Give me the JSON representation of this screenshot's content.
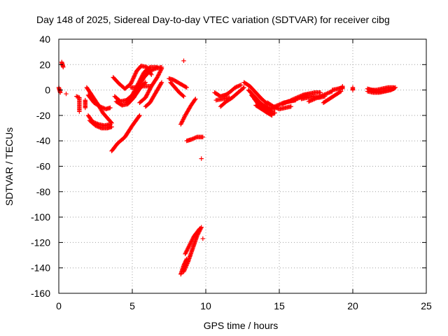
{
  "chart_data": {
    "type": "scatter",
    "title": "Day 148 of 2025, Sidereal Day-to-day VTEC variation (SDTVAR) for receiver cibg",
    "xlabel": "GPS time / hours",
    "ylabel": "SDTVAR / TECUs",
    "xlim": [
      0,
      25
    ],
    "ylim": [
      -160,
      40
    ],
    "xticks": [
      0,
      5,
      10,
      15,
      20,
      25
    ],
    "yticks": [
      40,
      20,
      0,
      -20,
      -40,
      -60,
      -80,
      -100,
      -120,
      -140,
      -160
    ],
    "grid": true,
    "marker": "+",
    "color": "#ff0000",
    "segments": [
      [
        [
          0.0,
          2
        ],
        [
          0.05,
          0
        ],
        [
          0.1,
          -2
        ]
      ],
      [
        [
          0.2,
          22
        ],
        [
          0.25,
          20
        ],
        [
          0.3,
          18
        ]
      ],
      [
        [
          0.5,
          -3
        ]
      ],
      [
        [
          1.2,
          -5
        ],
        [
          1.4,
          -6
        ],
        [
          1.4,
          -17
        ]
      ],
      [
        [
          1.8,
          -8
        ],
        [
          1.8,
          -11
        ],
        [
          1.8,
          -14
        ]
      ],
      [
        [
          1.9,
          2
        ],
        [
          2.3,
          -5
        ],
        [
          2.7,
          -12
        ],
        [
          3.0,
          -18
        ],
        [
          3.3,
          -22
        ],
        [
          3.6,
          -26
        ]
      ],
      [
        [
          2.0,
          -4
        ],
        [
          2.4,
          -10
        ],
        [
          2.8,
          -13
        ],
        [
          3.2,
          -15
        ],
        [
          3.5,
          -14
        ]
      ],
      [
        [
          2.0,
          -20
        ],
        [
          2.3,
          -25
        ],
        [
          2.7,
          -27
        ],
        [
          3.1,
          -28
        ],
        [
          3.5,
          -27
        ]
      ],
      [
        [
          2.1,
          -24
        ],
        [
          2.5,
          -28
        ],
        [
          2.9,
          -30
        ],
        [
          3.3,
          -30
        ],
        [
          3.6,
          -29
        ]
      ],
      [
        [
          3.6,
          -48
        ],
        [
          4.0,
          -42
        ],
        [
          4.5,
          -37
        ],
        [
          5.0,
          -28
        ],
        [
          5.5,
          -20
        ]
      ],
      [
        [
          3.7,
          10
        ],
        [
          4.1,
          5
        ],
        [
          4.5,
          1
        ],
        [
          4.9,
          5
        ],
        [
          5.3,
          15
        ],
        [
          5.6,
          19
        ],
        [
          6.0,
          18
        ],
        [
          6.3,
          12
        ]
      ],
      [
        [
          3.8,
          -5
        ],
        [
          4.2,
          -9
        ],
        [
          4.6,
          -8
        ],
        [
          5.0,
          -4
        ],
        [
          5.4,
          5
        ],
        [
          5.8,
          14
        ],
        [
          6.2,
          18
        ],
        [
          6.7,
          18
        ]
      ],
      [
        [
          3.9,
          -9
        ],
        [
          4.3,
          -12
        ],
        [
          4.7,
          -11
        ],
        [
          5.1,
          -6
        ],
        [
          5.5,
          1
        ],
        [
          5.9,
          6
        ]
      ],
      [
        [
          4.6,
          -10
        ],
        [
          5.0,
          -7
        ],
        [
          5.4,
          2
        ],
        [
          5.8,
          10
        ],
        [
          6.2,
          15
        ],
        [
          6.6,
          17
        ],
        [
          7.0,
          18
        ]
      ],
      [
        [
          4.9,
          2
        ],
        [
          5.3,
          2
        ],
        [
          5.7,
          3
        ],
        [
          6.2,
          3
        ]
      ],
      [
        [
          5.5,
          -10
        ],
        [
          5.9,
          -6
        ],
        [
          6.3,
          3
        ],
        [
          6.7,
          10
        ],
        [
          7.0,
          17
        ]
      ],
      [
        [
          5.9,
          -13
        ],
        [
          6.2,
          -10
        ],
        [
          6.6,
          -2
        ],
        [
          7.0,
          6
        ]
      ],
      [
        [
          7.5,
          9
        ],
        [
          7.8,
          8
        ],
        [
          8.1,
          6
        ],
        [
          8.4,
          4
        ],
        [
          8.7,
          2
        ]
      ],
      [
        [
          7.6,
          6
        ],
        [
          7.9,
          2
        ],
        [
          8.2,
          -2
        ],
        [
          8.5,
          -5
        ]
      ],
      [
        [
          8.5,
          23
        ]
      ],
      [
        [
          8.3,
          -27
        ],
        [
          8.6,
          -20
        ],
        [
          9.0,
          -12
        ],
        [
          9.3,
          -7
        ]
      ],
      [
        [
          8.7,
          -40
        ],
        [
          9.0,
          -39
        ],
        [
          9.4,
          -37
        ],
        [
          9.8,
          -37
        ]
      ],
      [
        [
          9.7,
          -54
        ]
      ],
      [
        [
          8.3,
          -145
        ],
        [
          8.5,
          -138
        ],
        [
          8.7,
          -133
        ]
      ],
      [
        [
          8.5,
          -143
        ],
        [
          8.8,
          -135
        ],
        [
          9.1,
          -125
        ],
        [
          9.4,
          -115
        ],
        [
          9.7,
          -108
        ]
      ],
      [
        [
          8.6,
          -129
        ],
        [
          8.9,
          -122
        ],
        [
          9.2,
          -115
        ],
        [
          9.6,
          -109
        ]
      ],
      [
        [
          9.8,
          -117
        ]
      ],
      [
        [
          10.6,
          -2
        ],
        [
          11.0,
          -5
        ],
        [
          11.3,
          -4
        ]
      ],
      [
        [
          10.7,
          -8
        ],
        [
          11.2,
          -7
        ],
        [
          11.6,
          -6
        ]
      ],
      [
        [
          11.0,
          -13
        ],
        [
          11.4,
          -9
        ],
        [
          11.8,
          -6
        ],
        [
          12.2,
          -2
        ],
        [
          12.6,
          2
        ]
      ],
      [
        [
          11.2,
          -5
        ],
        [
          11.6,
          -2
        ],
        [
          12.0,
          2
        ],
        [
          12.4,
          4
        ]
      ],
      [
        [
          12.6,
          6
        ],
        [
          13.0,
          3
        ],
        [
          13.4,
          -2
        ],
        [
          13.8,
          -7
        ],
        [
          14.2,
          -11
        ]
      ],
      [
        [
          12.9,
          0
        ],
        [
          13.3,
          -5
        ],
        [
          13.7,
          -10
        ],
        [
          14.1,
          -14
        ],
        [
          14.5,
          -17
        ]
      ],
      [
        [
          13.1,
          -4
        ],
        [
          13.5,
          -9
        ],
        [
          13.9,
          -12
        ],
        [
          14.3,
          -14
        ],
        [
          14.7,
          -15
        ]
      ],
      [
        [
          13.3,
          -7
        ],
        [
          13.7,
          -13
        ],
        [
          14.1,
          -17
        ],
        [
          14.4,
          -19
        ],
        [
          14.7,
          -18
        ]
      ],
      [
        [
          13.4,
          -12
        ],
        [
          13.8,
          -15
        ],
        [
          14.2,
          -18
        ],
        [
          14.5,
          -20
        ]
      ],
      [
        [
          14.2,
          -10
        ],
        [
          14.6,
          -13
        ],
        [
          15.0,
          -15
        ],
        [
          15.4,
          -14
        ],
        [
          15.8,
          -13
        ]
      ],
      [
        [
          14.5,
          -14
        ],
        [
          14.9,
          -12
        ],
        [
          15.3,
          -10
        ],
        [
          15.7,
          -9
        ],
        [
          16.1,
          -8
        ]
      ],
      [
        [
          15.2,
          -11
        ],
        [
          15.6,
          -9
        ],
        [
          16.0,
          -8
        ],
        [
          16.4,
          -6
        ],
        [
          16.8,
          -5
        ]
      ],
      [
        [
          15.8,
          -8
        ],
        [
          16.2,
          -6
        ],
        [
          16.6,
          -4
        ],
        [
          17.0,
          -3
        ]
      ],
      [
        [
          16.5,
          -7
        ],
        [
          16.9,
          -6
        ],
        [
          17.3,
          -5
        ],
        [
          17.7,
          -6
        ],
        [
          18.1,
          -5
        ]
      ],
      [
        [
          17.0,
          -9
        ],
        [
          17.4,
          -7
        ],
        [
          17.8,
          -5
        ],
        [
          18.2,
          -3
        ],
        [
          18.6,
          -1
        ]
      ],
      [
        [
          16.6,
          -4
        ],
        [
          17.0,
          -3
        ],
        [
          17.4,
          -2
        ],
        [
          17.8,
          -2
        ]
      ],
      [
        [
          18.0,
          -10
        ],
        [
          18.4,
          -7
        ],
        [
          18.8,
          -4
        ],
        [
          19.2,
          -1
        ]
      ],
      [
        [
          18.6,
          0
        ],
        [
          19.0,
          1
        ],
        [
          19.3,
          2
        ]
      ],
      [
        [
          19.3,
          3
        ],
        [
          19.3,
          1
        ]
      ],
      [
        [
          20.0,
          2
        ],
        [
          20.0,
          0
        ]
      ],
      [
        [
          21.0,
          1
        ],
        [
          21.3,
          0
        ],
        [
          21.6,
          -1
        ],
        [
          22.0,
          -1
        ],
        [
          22.4,
          0
        ],
        [
          22.8,
          1
        ]
      ],
      [
        [
          21.0,
          -1
        ],
        [
          21.4,
          -2
        ],
        [
          21.8,
          -2
        ],
        [
          22.2,
          -1
        ],
        [
          22.6,
          0
        ],
        [
          22.9,
          2
        ]
      ],
      [
        [
          21.2,
          0
        ],
        [
          21.6,
          0
        ],
        [
          22.0,
          1
        ],
        [
          22.4,
          2
        ],
        [
          22.8,
          2
        ]
      ]
    ]
  }
}
